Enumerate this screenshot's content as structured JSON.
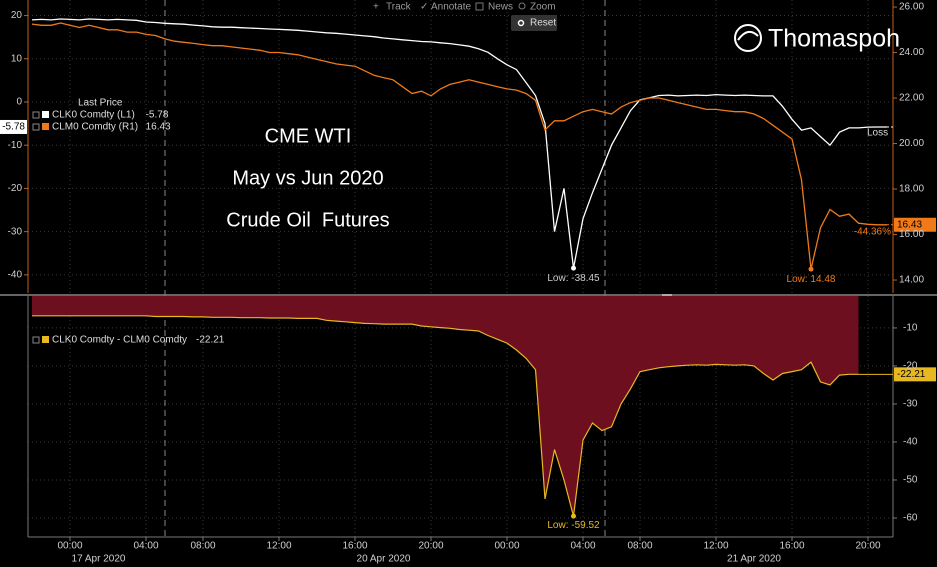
{
  "toolbar": {
    "track": "Track",
    "annotate": "Annotate",
    "news": "News",
    "zoom": "Zoom",
    "reset": "Reset"
  },
  "overlay": [
    "CME WTI",
    "May vs Jun 2020",
    "Crude Oil  Futures"
  ],
  "watermark": "Thomaspoh",
  "chart_data": [
    {
      "type": "line",
      "legend_title": "Last Price",
      "annotation": "Loss",
      "ylim": [
        -44.2,
        23.6
      ],
      "yticks": [
        20,
        10,
        0,
        -10,
        -20,
        -30,
        -40
      ],
      "y2lim": [
        13.43,
        26.31
      ],
      "y2ticks": [
        {
          "value": 26,
          "label": "26.00"
        },
        {
          "value": 24,
          "label": "24.00"
        },
        {
          "value": 22,
          "label": "22.00"
        },
        {
          "value": 20,
          "label": "20.00"
        },
        {
          "value": 18,
          "label": "18.00"
        },
        {
          "value": 16,
          "label": "16.00"
        },
        {
          "value": 14,
          "label": "14.00"
        }
      ],
      "grid": true,
      "series": [
        {
          "name": "CLK0 Comdty (L1)",
          "color": "#ffffff",
          "axis": "y",
          "last_value": -5.78,
          "low_label": "Low: -38.45",
          "values": [
            19,
            19.1,
            19,
            19.2,
            19.1,
            19,
            19.2,
            19.1,
            19,
            19.1,
            19,
            18.9,
            18.5,
            18.4,
            18.2,
            18.1,
            18,
            17.8,
            17.6,
            17.4,
            17.3,
            17.3,
            17.2,
            17.1,
            17,
            16.9,
            16.8,
            16.7,
            16.6,
            16.4,
            16.2,
            16,
            15.9,
            15.7,
            15.5,
            15.3,
            15.1,
            14.8,
            14.6,
            14.4,
            14.2,
            14,
            13.9,
            13.7,
            13.5,
            13.2,
            12.9,
            12.3,
            11.5,
            10,
            8.6,
            7.5,
            4.5,
            1.5,
            -5,
            -30,
            -20,
            -38.45,
            -27,
            -21,
            -15.5,
            -10,
            -6,
            -2,
            0.5,
            1,
            1.5,
            1.6,
            1.4,
            1.5,
            1.6,
            1.5,
            1.7,
            1.6,
            1.5,
            1.6,
            1.5,
            1.4,
            1.4,
            -1,
            -4,
            -6.5,
            -6,
            -8,
            -10,
            -7,
            -6,
            -6,
            -5.8,
            -5.78,
            -5.78
          ]
        },
        {
          "name": "CLM0 Comdty (R1)",
          "color": "#f07a1a",
          "axis": "y2",
          "last_value": 16.43,
          "low_label": "Low: 14.48",
          "change_label": "-44.36%",
          "values": [
            25.25,
            25.2,
            25.2,
            25.3,
            25.2,
            25.1,
            25.2,
            25.1,
            25,
            25,
            24.9,
            24.9,
            24.8,
            24.75,
            24.6,
            24.5,
            24.45,
            24.4,
            24.35,
            24.3,
            24.3,
            24.25,
            24.2,
            24.15,
            24.1,
            24,
            24,
            23.95,
            23.9,
            23.8,
            23.7,
            23.6,
            23.5,
            23.45,
            23.4,
            23.2,
            23,
            22.9,
            22.8,
            22.5,
            22.2,
            22.3,
            22.1,
            22.4,
            22.6,
            22.7,
            22.8,
            22.7,
            22.6,
            22.5,
            22.4,
            22.35,
            22.2,
            21.9,
            20.6,
            21,
            21,
            21.2,
            21.4,
            21.5,
            21.4,
            21.3,
            21.6,
            21.8,
            21.9,
            22,
            22,
            21.9,
            21.8,
            21.7,
            21.6,
            21.5,
            21.5,
            21.45,
            21.4,
            21.4,
            21.3,
            21.1,
            20.8,
            20.5,
            20.2,
            18.4,
            14.48,
            16.3,
            17.1,
            16.8,
            16.9,
            16.5,
            16.45,
            16.43,
            16.43
          ]
        }
      ]
    },
    {
      "type": "area",
      "categories": [
        null,
        null,
        null,
        null,
        "00:00",
        null,
        null,
        null,
        null,
        null,
        null,
        null,
        "04:00",
        null,
        null,
        null,
        null,
        null,
        "08:00",
        null,
        null,
        null,
        null,
        null,
        null,
        null,
        "12:00",
        null,
        null,
        null,
        null,
        null,
        null,
        null,
        "16:00",
        null,
        null,
        null,
        null,
        null,
        null,
        null,
        "20:00",
        null,
        null,
        null,
        null,
        null,
        null,
        null,
        "00:00",
        null,
        null,
        null,
        null,
        null,
        null,
        null,
        "04:00",
        null,
        null,
        null,
        null,
        null,
        "08:00",
        null,
        null,
        null,
        null,
        null,
        null,
        null,
        "12:00",
        null,
        null,
        null,
        null,
        null,
        null,
        null,
        "16:00",
        null,
        null,
        null,
        null,
        null,
        null,
        null,
        "20:00",
        null,
        null
      ],
      "dates": [
        null,
        null,
        null,
        null,
        null,
        null,
        null,
        "17 Apr 2020",
        null,
        null,
        null,
        null,
        null,
        null,
        null,
        null,
        null,
        null,
        null,
        null,
        null,
        null,
        null,
        null,
        null,
        null,
        null,
        null,
        null,
        null,
        null,
        null,
        null,
        null,
        null,
        null,
        null,
        "20 Apr 2020",
        null,
        null,
        null,
        null,
        null,
        null,
        null,
        null,
        null,
        null,
        null,
        null,
        null,
        null,
        null,
        null,
        null,
        null,
        null,
        null,
        null,
        null,
        null,
        null,
        null,
        null,
        null,
        null,
        null,
        null,
        null,
        null,
        null,
        null,
        null,
        null,
        null,
        null,
        "21 Apr 2020",
        null,
        null,
        null,
        null,
        null,
        null,
        null,
        null,
        null,
        null,
        null,
        null,
        null,
        null
      ],
      "ylim": [
        -65.0,
        -1.6
      ],
      "yticks": [
        -10,
        -20,
        -30,
        -40,
        -50,
        -60
      ],
      "grid": true,
      "series": [
        {
          "name": "CLK0 Comdty - CLM0 Comdty",
          "color": "#e8b820",
          "fill": "#6e0f20",
          "last_value": -22.21,
          "low_label": "Low: -59.52",
          "values": [
            -6.8,
            -6.8,
            -6.8,
            -6.8,
            -6.8,
            -6.8,
            -6.8,
            -6.8,
            -6.8,
            -6.8,
            -6.8,
            -6.8,
            -6.8,
            -7,
            -7,
            -7,
            -7,
            -7.1,
            -7.1,
            -7.2,
            -7.2,
            -7.2,
            -7.3,
            -7.3,
            -7.3,
            -7.4,
            -7.4,
            -7.4,
            -7.5,
            -7.5,
            -7.5,
            -8,
            -8.2,
            -8.4,
            -8.6,
            -8.8,
            -8.9,
            -9,
            -9,
            -9,
            -9,
            -9.5,
            -9.7,
            -9.9,
            -10.1,
            -10.4,
            -10.6,
            -10.8,
            -12,
            -13,
            -14,
            -15.8,
            -18,
            -21,
            -55,
            -42,
            -50,
            -59.52,
            -39.5,
            -35,
            -37,
            -36,
            -30,
            -26,
            -21.5,
            -21,
            -20.5,
            -20.2,
            -20,
            -19.8,
            -19.7,
            -19.8,
            -19.6,
            -19.7,
            -19.8,
            -19.7,
            -20,
            -22,
            -23.7,
            -22,
            -21.5,
            -21,
            -19,
            -24.2,
            -25,
            -22.4,
            -22.2,
            -22.21,
            null,
            null,
            null
          ]
        }
      ]
    }
  ]
}
